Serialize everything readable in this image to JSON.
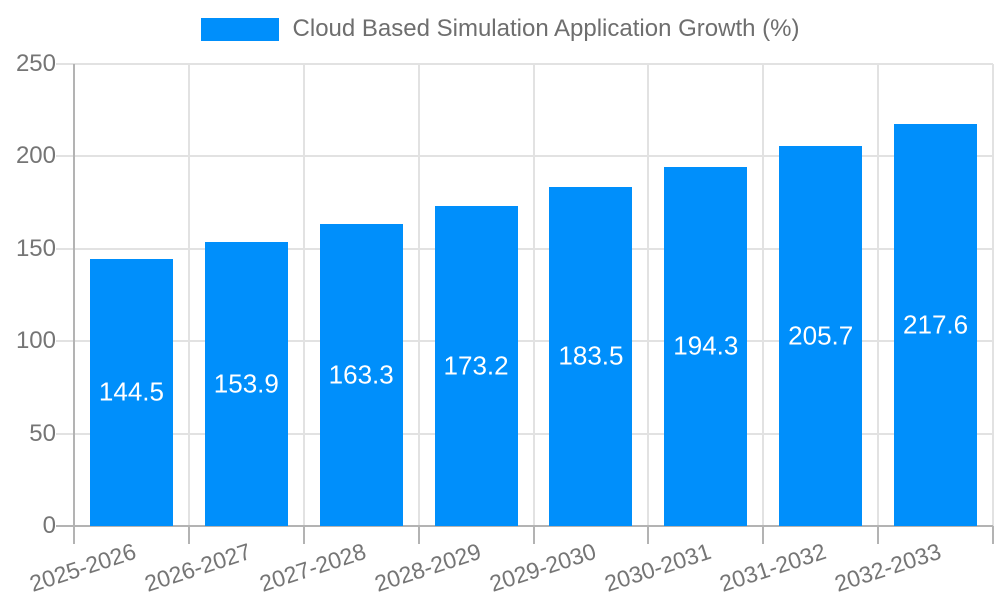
{
  "legend": {
    "label": "Cloud Based Simulation Application Growth (%)",
    "swatch_color": "#008FFB"
  },
  "chart_data": {
    "type": "bar",
    "title": "Cloud Based Simulation Application Growth (%)",
    "categories": [
      "2025-2026",
      "2026-2027",
      "2027-2028",
      "2028-2029",
      "2029-2030",
      "2030-2031",
      "2031-2032",
      "2032-2033"
    ],
    "values": [
      144.5,
      153.9,
      163.3,
      173.2,
      183.5,
      194.3,
      205.7,
      217.6
    ],
    "xlabel": "",
    "ylabel": "",
    "ylim": [
      0,
      250
    ],
    "yticks": [
      0,
      50,
      100,
      150,
      200,
      250
    ],
    "grid": true,
    "legend_position": "top",
    "bar_color": "#008FFB",
    "value_label_color": "#ffffff",
    "axis_label_color": "#757575",
    "grid_color": "#e2e2e2",
    "axis_line_color": "#b3b3b3",
    "background_color": "#ffffff"
  }
}
